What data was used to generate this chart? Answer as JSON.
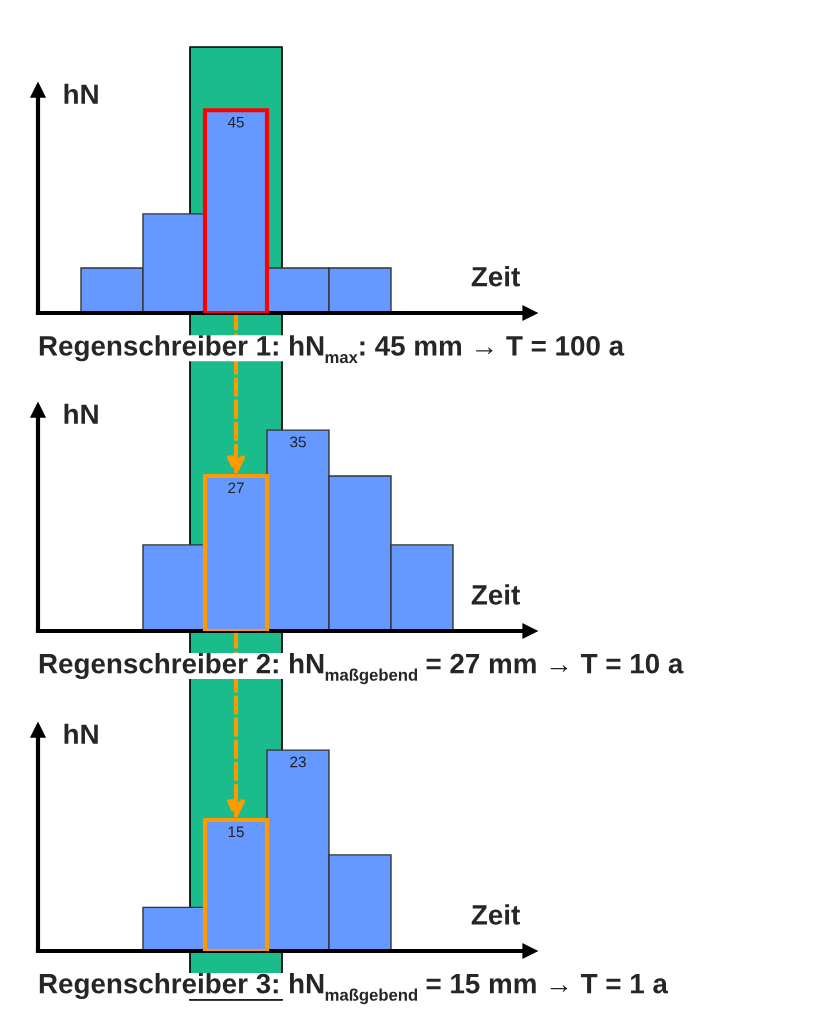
{
  "chart_data": [
    {
      "type": "bar",
      "xlabel": "Zeit",
      "ylabel": "hN",
      "categories": [
        null,
        null,
        null,
        null,
        null
      ],
      "series": [
        {
          "color": "#6699ff",
          "values": [
            10,
            22,
            45,
            10,
            10
          ],
          "value_labels": [
            null,
            null,
            "45",
            null,
            null
          ]
        }
      ],
      "annotations": [
        "Regenschreiber 1: hN$_{max}$: 45 mm → T = 100 a"
      ]
    },
    {
      "type": "bar",
      "xlabel": "Zeit",
      "ylabel": "hN",
      "categories": [
        null,
        null,
        null,
        null,
        null
      ],
      "series": [
        {
          "color": "#6699ff",
          "values": [
            15,
            27,
            35,
            27,
            15
          ],
          "value_labels": [
            null,
            "27",
            "35",
            null,
            null
          ]
        }
      ],
      "annotations": [
        "Regenschreiber 2: hN$_{maßgebend}$ = 27 mm → T = 10 a"
      ]
    },
    {
      "type": "bar",
      "xlabel": "Zeit",
      "ylabel": "hN",
      "categories": [
        null,
        null,
        null,
        null
      ],
      "series": [
        {
          "color": "#6699ff",
          "values": [
            5,
            15,
            23,
            11
          ],
          "value_labels": [
            null,
            "15",
            "23",
            null
          ]
        }
      ],
      "annotations": [
        "Regenschreiber 3: hN$_{maßgebend}$ = 15 mm → T = 1 a"
      ]
    }
  ]
}
